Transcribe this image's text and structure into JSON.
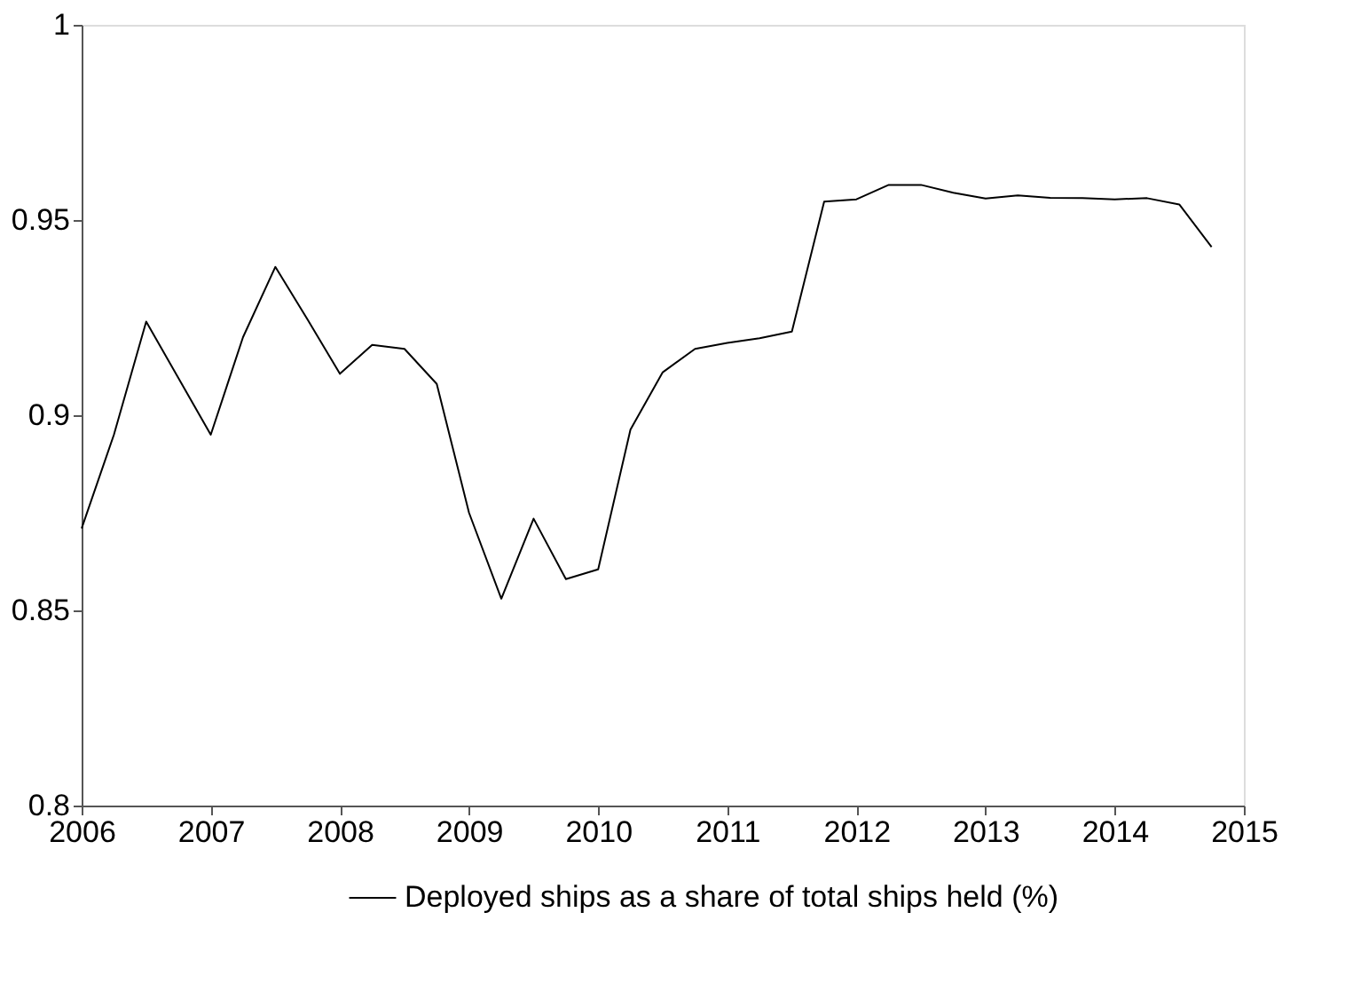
{
  "chart_data": {
    "type": "line",
    "xlim": [
      2006,
      2015
    ],
    "xticks": [
      2006,
      2007,
      2008,
      2009,
      2010,
      2011,
      2012,
      2013,
      2014,
      2015
    ],
    "ylim": [
      0.8,
      1
    ],
    "yticks": [
      0.8,
      0.85,
      0.9,
      0.95,
      1
    ],
    "grid": false,
    "legend": "bottom",
    "x": [
      2006,
      2006.25,
      2006.5,
      2006.75,
      2007,
      2007.25,
      2007.5,
      2007.75,
      2008,
      2008.25,
      2008.5,
      2008.75,
      2009,
      2009.25,
      2009.5,
      2009.75,
      2010,
      2010.25,
      2010.5,
      2010.75,
      2011,
      2011.25,
      2011.5,
      2011.75,
      2012,
      2012.25,
      2012.5,
      2012.75,
      2013,
      2013.25,
      2013.5,
      2013.75,
      2014,
      2014.25,
      2014.5,
      2014.75
    ],
    "series": [
      {
        "name": "Deployed ships as a share of total ships held (%)",
        "color": "#000000",
        "values": [
          0.871,
          0.895,
          0.924,
          0.9095,
          0.895,
          0.92,
          0.938,
          0.9245,
          0.9106,
          0.918,
          0.917,
          0.908,
          0.875,
          0.853,
          0.8735,
          0.858,
          0.8605,
          0.8963,
          0.911,
          0.917,
          0.9185,
          0.9197,
          0.9214,
          0.9547,
          0.9553,
          0.959,
          0.959,
          0.957,
          0.9555,
          0.9563,
          0.9557,
          0.9556,
          0.9553,
          0.9556,
          0.954,
          0.9431
        ]
      }
    ]
  }
}
